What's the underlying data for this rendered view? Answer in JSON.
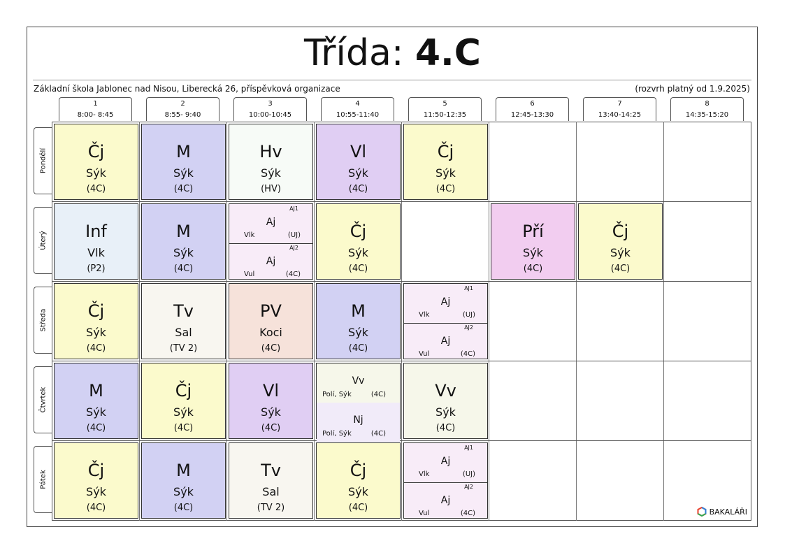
{
  "title": {
    "prefix": "Třída:",
    "class_name": "4.C"
  },
  "school_name": "Základní škola Jablonec nad Nisou, Liberecká 26, příspěvková organizace",
  "valid_from": "(rozvrh platný od 1.9.2025)",
  "periods": [
    {
      "num": "1",
      "time": "8:00- 8:45"
    },
    {
      "num": "2",
      "time": "8:55- 9:40"
    },
    {
      "num": "3",
      "time": "10:00-10:45"
    },
    {
      "num": "4",
      "time": "10:55-11:40"
    },
    {
      "num": "5",
      "time": "11:50-12:35"
    },
    {
      "num": "6",
      "time": "12:45-13:30"
    },
    {
      "num": "7",
      "time": "13:40-14:25"
    },
    {
      "num": "8",
      "time": "14:35-15:20"
    }
  ],
  "days": [
    "Pondělí",
    "Úterý",
    "Středa",
    "Čtvrtek",
    "Pátek"
  ],
  "lessons": {
    "po1": {
      "subject": "Čj",
      "teacher": "Sýk",
      "room": "(4C)",
      "color": "#fbfacc"
    },
    "po2": {
      "subject": "M",
      "teacher": "Sýk",
      "room": "(4C)",
      "color": "#d2d1f3"
    },
    "po3": {
      "subject": "Hv",
      "teacher": "Sýk",
      "room": "(HV)",
      "color": "#f7fbf7"
    },
    "po4": {
      "subject": "Vl",
      "teacher": "Sýk",
      "room": "(4C)",
      "color": "#e0cef3"
    },
    "po5": {
      "subject": "Čj",
      "teacher": "Sýk",
      "room": "(4C)",
      "color": "#fbfacc"
    },
    "ut1": {
      "subject": "Inf",
      "teacher": "Vlk",
      "room": "(P2)",
      "color": "#e8f0f8"
    },
    "ut2": {
      "subject": "M",
      "teacher": "Sýk",
      "room": "(4C)",
      "color": "#d2d1f3"
    },
    "ut3": {
      "color": "#f8ecf8",
      "top": {
        "group": "AJ1",
        "subject": "Aj",
        "teacher": "Vlk",
        "room": "(UJ)"
      },
      "bottom": {
        "group": "AJ2",
        "subject": "Aj",
        "teacher": "Vul",
        "room": "(4C)"
      }
    },
    "ut4": {
      "subject": "Čj",
      "teacher": "Sýk",
      "room": "(4C)",
      "color": "#fbfacc"
    },
    "ut6": {
      "subject": "Pří",
      "teacher": "Sýk",
      "room": "(4C)",
      "color": "#f2cdf0"
    },
    "ut7": {
      "subject": "Čj",
      "teacher": "Sýk",
      "room": "(4C)",
      "color": "#fbfacc"
    },
    "st1": {
      "subject": "Čj",
      "teacher": "Sýk",
      "room": "(4C)",
      "color": "#fbfacc"
    },
    "st2": {
      "subject": "Tv",
      "teacher": "Sal",
      "room": "(TV 2)",
      "color": "#f8f6f0"
    },
    "st3": {
      "subject": "PV",
      "teacher": "Koci",
      "room": "(4C)",
      "color": "#f6e2da"
    },
    "st4": {
      "subject": "M",
      "teacher": "Sýk",
      "room": "(4C)",
      "color": "#d2d1f3"
    },
    "st5": {
      "color": "#f8ecf8",
      "top": {
        "group": "AJ1",
        "subject": "Aj",
        "teacher": "Vlk",
        "room": "(UJ)"
      },
      "bottom": {
        "group": "AJ2",
        "subject": "Aj",
        "teacher": "Vul",
        "room": "(4C)"
      }
    },
    "ct1": {
      "subject": "M",
      "teacher": "Sýk",
      "room": "(4C)",
      "color": "#d2d1f3"
    },
    "ct2": {
      "subject": "Čj",
      "teacher": "Sýk",
      "room": "(4C)",
      "color": "#fbfacc"
    },
    "ct3": {
      "subject": "Vl",
      "teacher": "Sýk",
      "room": "(4C)",
      "color": "#e0cef3"
    },
    "ct4": {
      "color_top": "#f6f7ea",
      "color_bottom": "#f1ebf9",
      "top": {
        "subject": "Vv",
        "teacher": "Polí, Sýk",
        "room": "(4C)"
      },
      "bottom": {
        "subject": "Nj",
        "teacher": "Polí, Sýk",
        "room": "(4C)"
      }
    },
    "ct5": {
      "subject": "Vv",
      "teacher": "Sýk",
      "room": "(4C)",
      "color": "#f6f7ea"
    },
    "pa1": {
      "subject": "Čj",
      "teacher": "Sýk",
      "room": "(4C)",
      "color": "#fbfacc"
    },
    "pa2": {
      "subject": "M",
      "teacher": "Sýk",
      "room": "(4C)",
      "color": "#d2d1f3"
    },
    "pa3": {
      "subject": "Tv",
      "teacher": "Sal",
      "room": "(TV 2)",
      "color": "#f8f6f0"
    },
    "pa4": {
      "subject": "Čj",
      "teacher": "Sýk",
      "room": "(4C)",
      "color": "#fbfacc"
    },
    "pa5": {
      "color": "#f8ecf8",
      "top": {
        "group": "AJ1",
        "subject": "Aj",
        "teacher": "Vlk",
        "room": "(UJ)"
      },
      "bottom": {
        "group": "AJ2",
        "subject": "Aj",
        "teacher": "Vul",
        "room": "(4C)"
      }
    }
  },
  "brand": {
    "name": "BAKALÁŘI",
    "icon": "bakalari-logo-icon"
  }
}
